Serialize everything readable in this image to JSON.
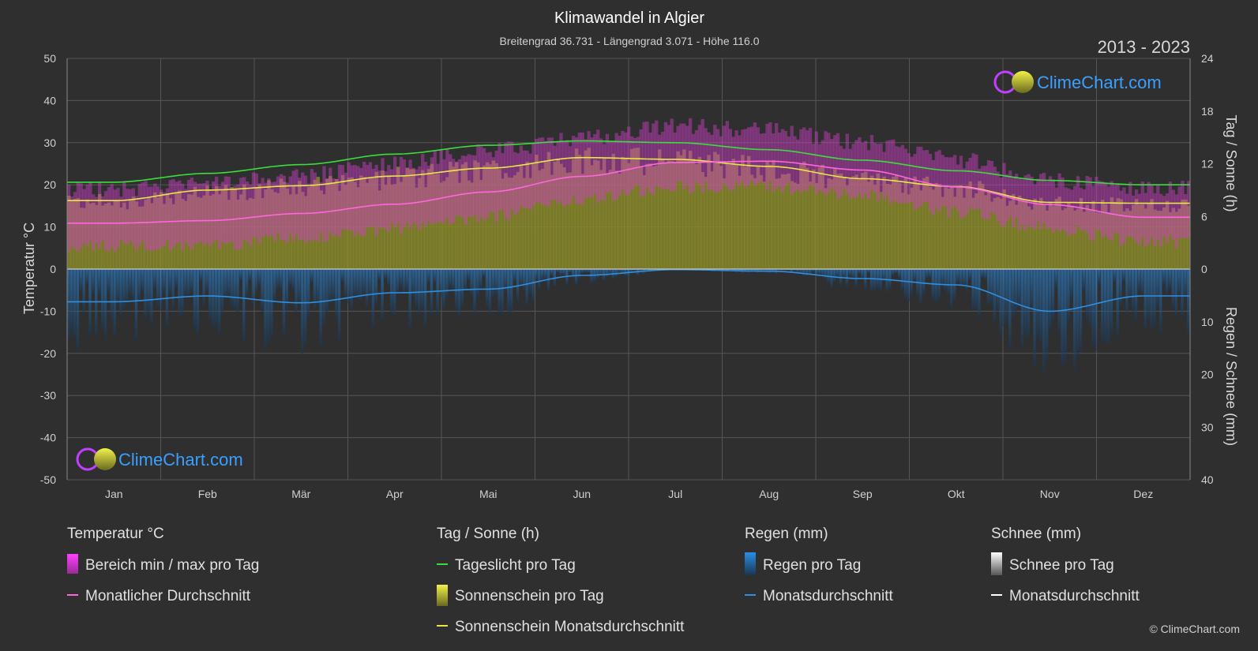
{
  "title": "Klimawandel in Algier",
  "subtitle": "Breitengrad 36.731 - Längengrad 3.071 - Höhe 116.0",
  "year_range": "2013 - 2023",
  "logo_text": "ClimeChart.com",
  "copyright": "© ClimeChart.com",
  "chart_data": {
    "type": "area",
    "categories": [
      "Jan",
      "Feb",
      "Mär",
      "Apr",
      "Mai",
      "Jun",
      "Jul",
      "Aug",
      "Sep",
      "Okt",
      "Nov",
      "Dez"
    ],
    "y_left": {
      "label": "Temperatur °C",
      "ticks": [
        "50",
        "40",
        "30",
        "20",
        "10",
        "0",
        "-10",
        "-20",
        "-30",
        "-40",
        "-50"
      ],
      "range": [
        -50,
        50
      ]
    },
    "y_right_top": {
      "label": "Tag / Sonne (h)",
      "ticks": [
        "24",
        "18",
        "12",
        "6",
        "0"
      ],
      "range": [
        0,
        24
      ]
    },
    "y_right_bottom": {
      "label": "Regen / Schnee (mm)",
      "ticks": [
        "0",
        "10",
        "20",
        "30",
        "40"
      ],
      "range": [
        0,
        40
      ]
    },
    "series": [
      {
        "name": "Tageslicht pro Tag",
        "axis": "sun",
        "color": "#3ddc3d",
        "values": [
          9.9,
          10.9,
          11.9,
          13.1,
          14.1,
          14.6,
          14.4,
          13.6,
          12.4,
          11.2,
          10.1,
          9.6
        ]
      },
      {
        "name": "Sonnenschein Monatsdurchschnitt",
        "axis": "sun",
        "color": "#e8e845",
        "values": [
          7.8,
          9.0,
          9.5,
          10.6,
          11.5,
          12.7,
          12.5,
          11.7,
          10.3,
          9.4,
          7.6,
          7.5
        ]
      },
      {
        "name": "Monatlicher Durchschnitt",
        "axis": "temp",
        "color": "#ff66dd",
        "values": [
          10.9,
          11.5,
          13.2,
          15.4,
          18.3,
          22.0,
          25.3,
          25.6,
          23.5,
          19.5,
          15.3,
          12.3
        ]
      },
      {
        "name": "Regen Monatsdurchschnitt",
        "axis": "rain",
        "color": "#2f8fe0",
        "values": [
          6.2,
          5.1,
          6.4,
          4.5,
          3.8,
          1.2,
          0.1,
          0.4,
          1.8,
          3.0,
          8.0,
          5.1
        ]
      }
    ],
    "temp_range_band": {
      "name": "Bereich min / max pro Tag",
      "min": [
        7,
        7,
        9,
        11,
        14,
        18,
        21,
        21,
        19,
        15,
        11,
        8
      ],
      "max": [
        17,
        18,
        20,
        23,
        26,
        29,
        32,
        31,
        28,
        24,
        19,
        17
      ]
    },
    "grid": true
  },
  "legend": {
    "temp": {
      "title": "Temperatur °C",
      "items": [
        "Bereich min / max pro Tag",
        "Monatlicher Durchschnitt"
      ]
    },
    "sun": {
      "title": "Tag / Sonne (h)",
      "items": [
        "Tageslicht pro Tag",
        "Sonnenschein pro Tag",
        "Sonnenschein Monatsdurchschnitt"
      ]
    },
    "rain": {
      "title": "Regen (mm)",
      "items": [
        "Regen pro Tag",
        "Monatsdurchschnitt"
      ]
    },
    "snow": {
      "title": "Schnee (mm)",
      "items": [
        "Schnee pro Tag",
        "Monatsdurchschnitt"
      ]
    }
  },
  "colors": {
    "background": "#2f2f2f",
    "grid": "#555555",
    "temp_band": "#d040c8",
    "sun_fill": "#8c8c2a",
    "rain_bar": "#2a6fa8",
    "snow": "#ffffff"
  }
}
